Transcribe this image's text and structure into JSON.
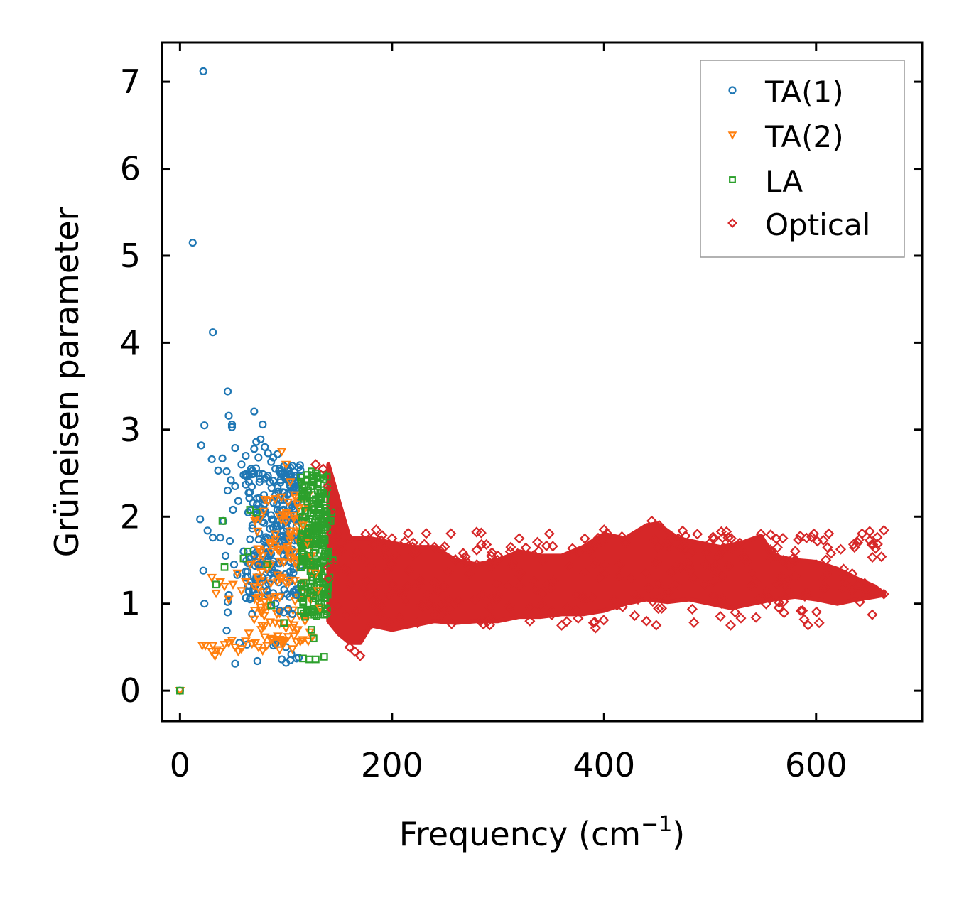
{
  "chart_data": {
    "type": "scatter",
    "title": "",
    "xlabel_main": "Frequency (cm",
    "xlabel_sup": "−1",
    "xlabel_close": ")",
    "ylabel": "Grüneisen parameter",
    "xlim": [
      -17,
      700
    ],
    "ylim": [
      -0.35,
      7.45
    ],
    "x_ticks": [
      0,
      200,
      400,
      600
    ],
    "x_tick_labels": [
      "0",
      "200",
      "400",
      "600"
    ],
    "y_ticks": [
      0,
      1,
      2,
      3,
      4,
      5,
      6,
      7
    ],
    "y_tick_labels": [
      "0",
      "1",
      "2",
      "3",
      "4",
      "5",
      "6",
      "7"
    ],
    "grid": false,
    "legend_position": "top-right",
    "series": [
      {
        "name": "TA(1)",
        "marker": "circle",
        "color": "#1f77b4",
        "points": [
          [
            0,
            0
          ],
          [
            12,
            5.15
          ],
          [
            22,
            7.12
          ],
          [
            31,
            4.12
          ],
          [
            45,
            3.44
          ],
          [
            23,
            3.05
          ],
          [
            46,
            3.16
          ],
          [
            49,
            3.06
          ],
          [
            49,
            3.03
          ],
          [
            70,
            3.21
          ],
          [
            78,
            3.06
          ],
          [
            20,
            2.82
          ],
          [
            19,
            1.97
          ],
          [
            26,
            1.84
          ],
          [
            31,
            1.76
          ],
          [
            22,
            1.38
          ],
          [
            23,
            1.0
          ],
          [
            38,
            1.76
          ],
          [
            36,
            2.53
          ],
          [
            40,
            2.67
          ],
          [
            44,
            2.52
          ],
          [
            48,
            2.42
          ],
          [
            52,
            2.79
          ],
          [
            30,
            2.66
          ],
          [
            45,
            2.3
          ],
          [
            52,
            2.35
          ],
          [
            50,
            2.08
          ],
          [
            55,
            2.18
          ],
          [
            41,
            1.95
          ],
          [
            43,
            1.55
          ],
          [
            47,
            1.72
          ],
          [
            51,
            1.45
          ],
          [
            54,
            1.33
          ],
          [
            46,
            1.1
          ],
          [
            45,
            1.02
          ],
          [
            45,
            0.9
          ],
          [
            44,
            0.69
          ],
          [
            56,
            0.55
          ],
          [
            52,
            0.31
          ],
          [
            63,
            0.53
          ],
          [
            73,
            0.34
          ],
          [
            90,
            0.54
          ],
          [
            96,
            0.36
          ],
          [
            104,
            0.35
          ],
          [
            100,
            0.32
          ],
          [
            110,
            0.37
          ],
          [
            112,
            0.38
          ],
          [
            58,
            2.6
          ],
          [
            60,
            2.48
          ],
          [
            62,
            2.7
          ],
          [
            65,
            2.4
          ],
          [
            67,
            2.55
          ],
          [
            70,
            2.78
          ],
          [
            72,
            2.86
          ],
          [
            74,
            2.68
          ],
          [
            76,
            2.89
          ],
          [
            80,
            2.8
          ],
          [
            83,
            2.73
          ],
          [
            86,
            2.63
          ],
          [
            88,
            2.68
          ],
          [
            90,
            2.55
          ],
          [
            92,
            2.72
          ],
          [
            95,
            2.49
          ],
          [
            98,
            2.58
          ],
          [
            101,
            2.44
          ],
          [
            104,
            2.36
          ],
          [
            60,
            1.6
          ],
          [
            62,
            1.37
          ],
          [
            64,
            1.2
          ],
          [
            66,
            1.05
          ],
          [
            68,
            0.88
          ],
          [
            70,
            1.55
          ],
          [
            74,
            1.45
          ],
          [
            78,
            1.3
          ],
          [
            82,
            1.15
          ],
          [
            86,
            0.98
          ],
          [
            90,
            1.0
          ],
          [
            94,
            0.92
          ],
          [
            98,
            0.9
          ],
          [
            102,
            0.94
          ],
          [
            106,
            0.88
          ],
          [
            110,
            1.1
          ],
          [
            88,
            0.52
          ],
          [
            100,
            0.5
          ],
          [
            105,
            0.42
          ]
        ]
      },
      {
        "name": "TA(2)",
        "marker": "triangle-down",
        "color": "#ff7f0e",
        "points": [
          [
            0,
            0
          ],
          [
            21,
            0.52
          ],
          [
            24,
            0.52
          ],
          [
            31,
            0.52
          ],
          [
            33,
            0.4
          ],
          [
            30,
            0.45
          ],
          [
            35,
            0.47
          ],
          [
            38,
            0.45
          ],
          [
            42,
            0.53
          ],
          [
            46,
            0.55
          ],
          [
            49,
            0.58
          ],
          [
            52,
            0.5
          ],
          [
            55,
            0.45
          ],
          [
            58,
            0.48
          ],
          [
            62,
            0.57
          ],
          [
            65,
            0.66
          ],
          [
            68,
            0.54
          ],
          [
            71,
            0.55
          ],
          [
            74,
            0.5
          ],
          [
            78,
            0.46
          ],
          [
            82,
            0.52
          ],
          [
            86,
            0.58
          ],
          [
            90,
            0.55
          ],
          [
            94,
            0.47
          ],
          [
            98,
            0.55
          ],
          [
            102,
            0.62
          ],
          [
            106,
            0.48
          ],
          [
            110,
            0.56
          ],
          [
            30,
            1.3
          ],
          [
            34,
            1.12
          ],
          [
            38,
            1.25
          ],
          [
            42,
            1.2
          ],
          [
            46,
            1.05
          ],
          [
            50,
            1.22
          ],
          [
            54,
            1.35
          ],
          [
            58,
            1.15
          ],
          [
            62,
            1.25
          ],
          [
            66,
            1.45
          ],
          [
            70,
            1.2
          ],
          [
            74,
            1.3
          ],
          [
            78,
            1.55
          ],
          [
            82,
            1.4
          ],
          [
            86,
            1.6
          ],
          [
            90,
            1.8
          ],
          [
            94,
            2.0
          ],
          [
            96,
            2.75
          ],
          [
            100,
            2.6
          ],
          [
            104,
            2.4
          ],
          [
            108,
            2.25
          ],
          [
            112,
            2.1
          ],
          [
            116,
            1.9
          ],
          [
            120,
            1.7
          ],
          [
            124,
            1.55
          ],
          [
            128,
            1.35
          ],
          [
            130,
            1.15
          ],
          [
            132,
            0.95
          ],
          [
            118,
            0.8
          ],
          [
            110,
            0.7
          ],
          [
            100,
            0.72
          ],
          [
            90,
            0.78
          ],
          [
            80,
            0.75
          ],
          [
            70,
            0.82
          ]
        ]
      },
      {
        "name": "LA",
        "marker": "square",
        "color": "#2ca02c",
        "points": [
          [
            0,
            0
          ],
          [
            34,
            1.22
          ],
          [
            42,
            1.42
          ],
          [
            40,
            1.95
          ],
          [
            60,
            1.52
          ],
          [
            64,
            1.6
          ],
          [
            66,
            2.08
          ],
          [
            72,
            2.05
          ],
          [
            82,
            1.45
          ],
          [
            86,
            0.98
          ],
          [
            98,
            0.78
          ],
          [
            116,
            0.37
          ],
          [
            122,
            0.36
          ],
          [
            128,
            0.36
          ],
          [
            136,
            0.39
          ],
          [
            126,
            0.6
          ],
          [
            124,
            0.7
          ],
          [
            118,
            0.85
          ],
          [
            114,
            2.45
          ],
          [
            116,
            2.25
          ],
          [
            118,
            2.0
          ],
          [
            120,
            1.75
          ],
          [
            122,
            1.55
          ],
          [
            124,
            1.3
          ],
          [
            126,
            1.1
          ],
          [
            128,
            2.5
          ],
          [
            130,
            2.3
          ],
          [
            131,
            2.1
          ],
          [
            132,
            1.9
          ],
          [
            133,
            1.7
          ],
          [
            134,
            1.5
          ],
          [
            135,
            1.3
          ],
          [
            136,
            1.1
          ],
          [
            137,
            0.95
          ],
          [
            138,
            2.1
          ],
          [
            139,
            1.85
          ],
          [
            140,
            1.6
          ],
          [
            141,
            1.3
          ],
          [
            142,
            1.95
          ],
          [
            143,
            2.05
          ],
          [
            144,
            1.5
          ],
          [
            120,
            2.48
          ],
          [
            124,
            2.52
          ],
          [
            126,
            2.4
          ],
          [
            128,
            2.2
          ]
        ]
      },
      {
        "name": "Optical",
        "marker": "diamond",
        "color": "#d62728",
        "points": [
          [
            128,
            2.6
          ],
          [
            135,
            2.55
          ],
          [
            140,
            2.35
          ],
          [
            145,
            2.1
          ],
          [
            150,
            1.8
          ],
          [
            160,
            1.75
          ],
          [
            165,
            0.45
          ],
          [
            170,
            0.4
          ],
          [
            160,
            0.5
          ],
          [
            175,
            1.8
          ],
          [
            185,
            1.85
          ],
          [
            200,
            1.75
          ],
          [
            220,
            1.7
          ],
          [
            240,
            1.65
          ],
          [
            260,
            1.5
          ],
          [
            280,
            1.45
          ],
          [
            300,
            1.55
          ],
          [
            312,
            1.65
          ],
          [
            320,
            1.75
          ],
          [
            330,
            0.8
          ],
          [
            360,
            0.75
          ],
          [
            390,
            0.78
          ],
          [
            392,
            0.72
          ],
          [
            400,
            1.85
          ],
          [
            420,
            1.7
          ],
          [
            432,
            1.05
          ],
          [
            440,
            0.8
          ],
          [
            445,
            1.95
          ],
          [
            452,
            1.9
          ],
          [
            470,
            1.75
          ],
          [
            488,
            1.8
          ],
          [
            500,
            1.7
          ],
          [
            520,
            1.75
          ],
          [
            528,
            1.7
          ],
          [
            548,
            1.8
          ],
          [
            560,
            1.55
          ],
          [
            580,
            1.5
          ],
          [
            600,
            1.45
          ],
          [
            612,
            1.4
          ],
          [
            625,
            1.3
          ],
          [
            640,
            1.22
          ],
          [
            650,
            1.18
          ],
          [
            664,
            1.11
          ]
        ],
        "band_upper": [
          [
            140,
            2.6
          ],
          [
            160,
            1.75
          ],
          [
            180,
            1.75
          ],
          [
            200,
            1.7
          ],
          [
            220,
            1.65
          ],
          [
            240,
            1.65
          ],
          [
            260,
            1.5
          ],
          [
            280,
            1.45
          ],
          [
            300,
            1.5
          ],
          [
            320,
            1.6
          ],
          [
            340,
            1.55
          ],
          [
            360,
            1.55
          ],
          [
            380,
            1.65
          ],
          [
            400,
            1.8
          ],
          [
            420,
            1.75
          ],
          [
            440,
            1.9
          ],
          [
            450,
            1.92
          ],
          [
            470,
            1.75
          ],
          [
            490,
            1.7
          ],
          [
            510,
            1.65
          ],
          [
            530,
            1.7
          ],
          [
            548,
            1.78
          ],
          [
            560,
            1.55
          ],
          [
            580,
            1.5
          ],
          [
            600,
            1.48
          ],
          [
            620,
            1.4
          ],
          [
            640,
            1.28
          ],
          [
            655,
            1.2
          ],
          [
            664,
            1.12
          ]
        ],
        "band_lower": [
          [
            140,
            0.8
          ],
          [
            150,
            0.65
          ],
          [
            160,
            0.55
          ],
          [
            170,
            0.55
          ],
          [
            180,
            0.75
          ],
          [
            200,
            0.7
          ],
          [
            220,
            0.75
          ],
          [
            240,
            0.8
          ],
          [
            260,
            0.78
          ],
          [
            280,
            0.8
          ],
          [
            300,
            0.8
          ],
          [
            320,
            0.85
          ],
          [
            340,
            0.85
          ],
          [
            360,
            0.88
          ],
          [
            380,
            0.88
          ],
          [
            400,
            0.92
          ],
          [
            420,
            1.0
          ],
          [
            440,
            1.05
          ],
          [
            460,
            1.02
          ],
          [
            480,
            1.05
          ],
          [
            500,
            1.0
          ],
          [
            520,
            0.95
          ],
          [
            540,
            1.0
          ],
          [
            560,
            1.05
          ],
          [
            580,
            1.08
          ],
          [
            600,
            1.05
          ],
          [
            620,
            1.0
          ],
          [
            640,
            1.05
          ],
          [
            655,
            1.08
          ],
          [
            664,
            1.1
          ]
        ]
      }
    ]
  }
}
